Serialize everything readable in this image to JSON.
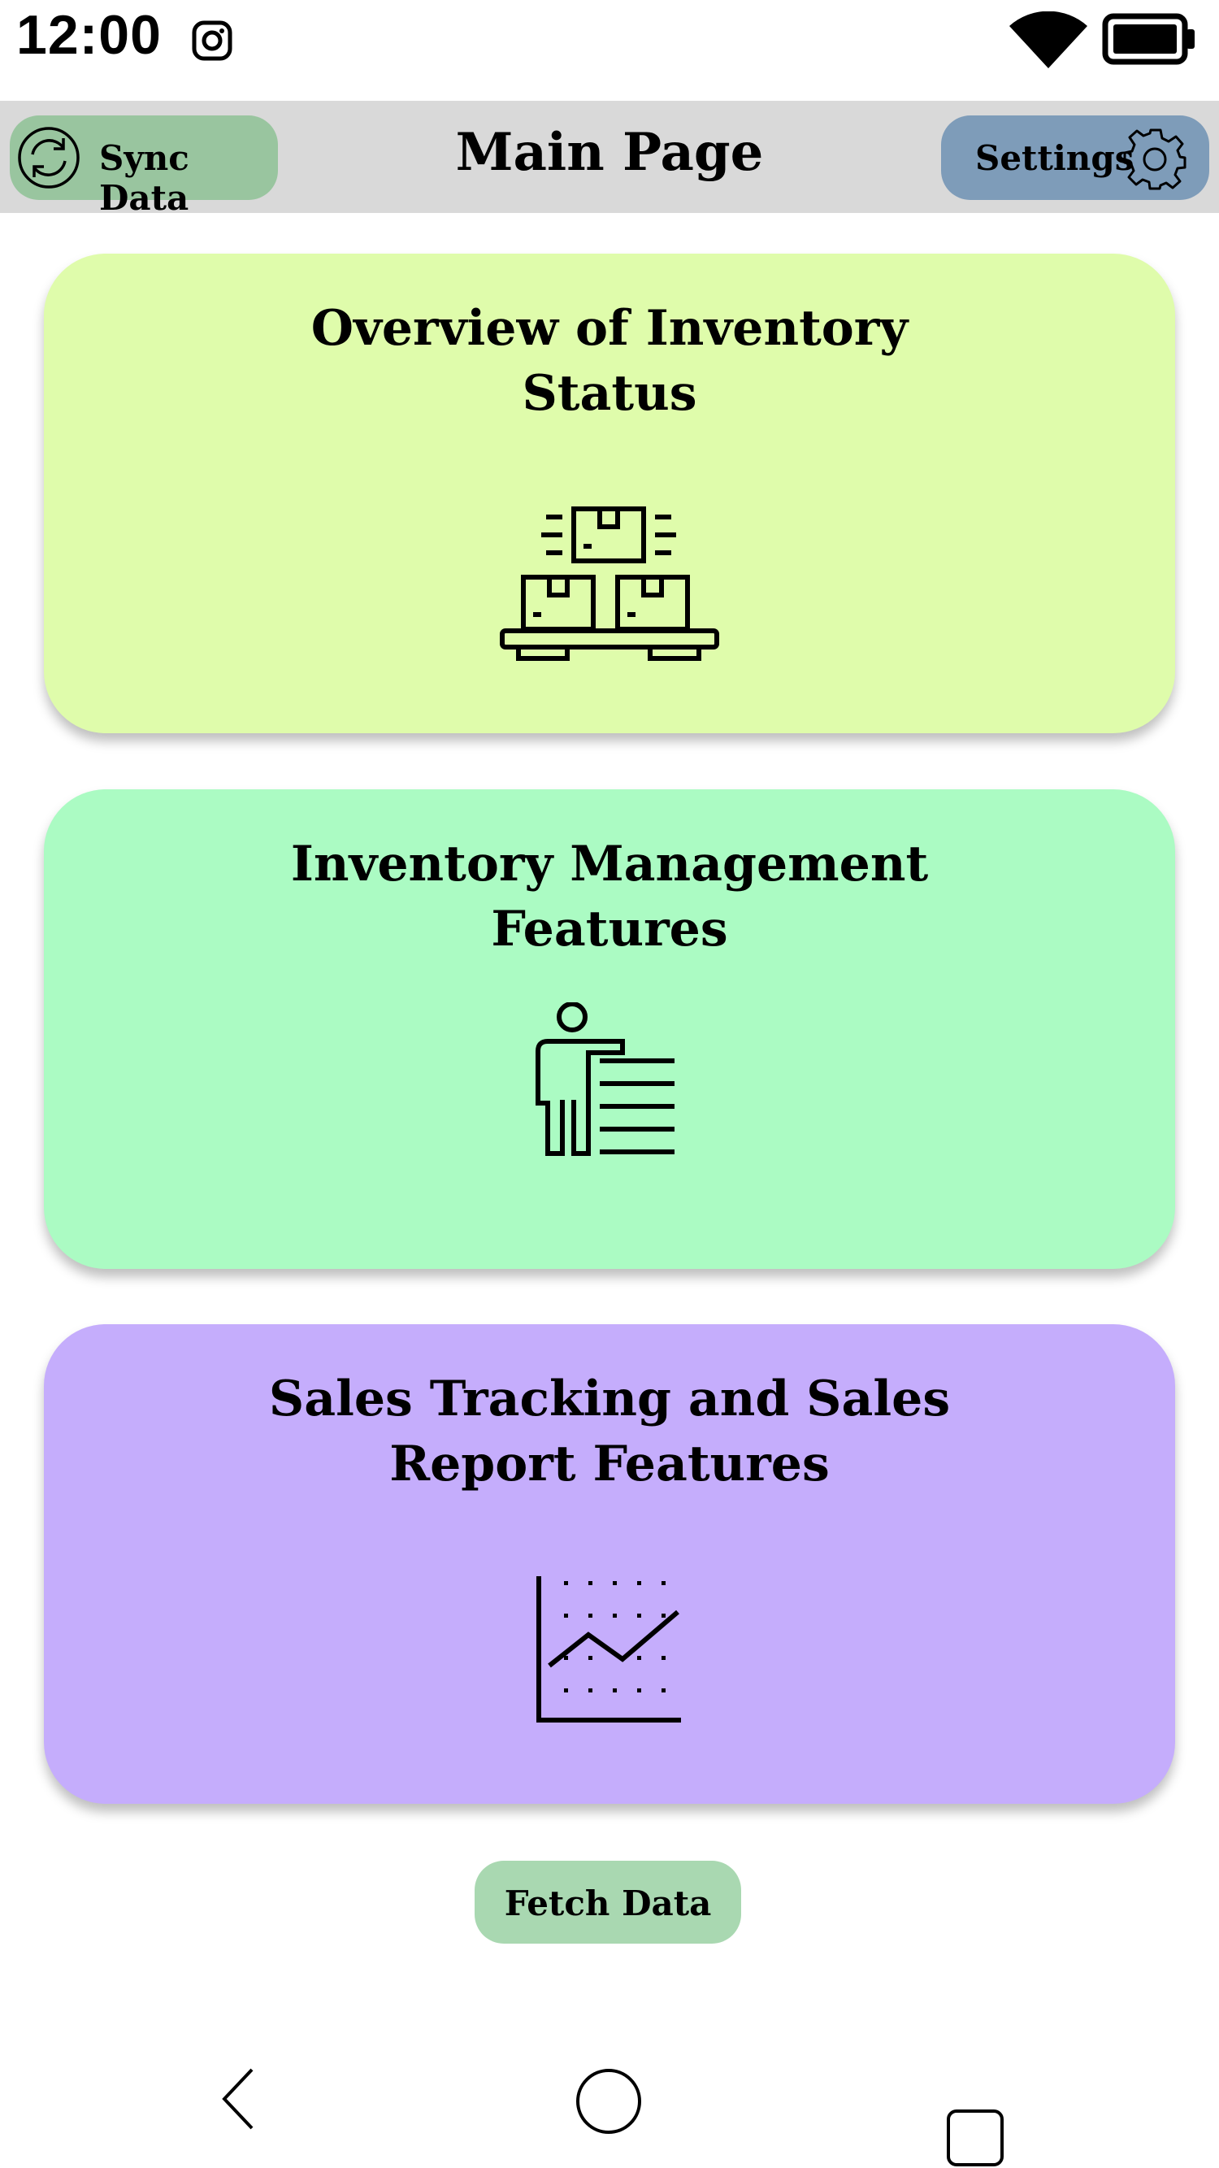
{
  "status_bar": {
    "time": "12:00"
  },
  "header": {
    "title": "Main Page",
    "sync_label": "Sync Data",
    "settings_label": "Settings"
  },
  "cards": [
    {
      "title_line1": "Overview of Inventory",
      "title_line2": "Status",
      "icon": "pallet-boxes-icon",
      "color": "#dffcab"
    },
    {
      "title_line1": "Inventory Management",
      "title_line2": "Features",
      "icon": "person-list-icon",
      "color": "#abfbc3"
    },
    {
      "title_line1": "Sales Tracking and Sales",
      "title_line2": "Report Features",
      "icon": "line-chart-icon",
      "color": "#c5adfc"
    }
  ],
  "fetch_label": "Fetch Data",
  "colors": {
    "header_bg": "#d9d9d9",
    "sync_button": "#99c59f",
    "settings_button": "#7e9cb9",
    "fetch_button": "#a9d8b1"
  }
}
